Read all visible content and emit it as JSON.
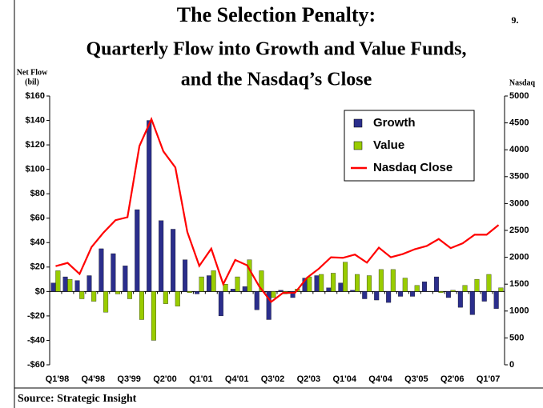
{
  "chart_data": {
    "type": "bar-line",
    "title": "The Selection Penalty:",
    "subtitle": [
      "Quarterly Flow into Growth and Value Funds,",
      "and the Nasdaq’s Close"
    ],
    "page_number": "9.",
    "y_label": [
      "Net Flow",
      "(bil)"
    ],
    "y2_label": "Nasdaq",
    "source": "Source: Strategic Insight",
    "categories": [
      "Q1'98",
      null,
      null,
      "Q4'98",
      null,
      null,
      "Q3'99",
      null,
      null,
      "Q2'00",
      null,
      null,
      "Q1'01",
      null,
      null,
      "Q4'01",
      null,
      null,
      "Q3'02",
      null,
      null,
      "Q2'03",
      null,
      null,
      "Q1'04",
      null,
      null,
      "Q4'04",
      null,
      null,
      "Q3'05",
      null,
      null,
      "Q2'06",
      null,
      null,
      "Q1'07",
      null
    ],
    "series": [
      {
        "name": "Growth",
        "color": "#2b2e8c",
        "type": "bar",
        "values": [
          7,
          12,
          9,
          13,
          35,
          31,
          21,
          67,
          140,
          58,
          51,
          26,
          -2,
          13,
          -20,
          2,
          4,
          -15,
          -23,
          1,
          -5,
          11,
          13,
          3,
          7,
          1,
          -6,
          -7,
          -9,
          -4,
          -4,
          8,
          12,
          -5,
          -13,
          -19,
          -8,
          -14
        ]
      },
      {
        "name": "Value",
        "color": "#99cc00",
        "type": "bar",
        "values": [
          17,
          10,
          -6,
          -8,
          -17,
          -2,
          -6,
          -23,
          -40,
          -10,
          -12,
          -1,
          12,
          17,
          6,
          12,
          26,
          17,
          -5,
          -2,
          2,
          12,
          14,
          15,
          24,
          14,
          13,
          18,
          18,
          11,
          5,
          0,
          -1,
          1,
          5,
          10,
          14,
          3
        ]
      },
      {
        "name": "Nasdaq Close",
        "color": "#ff0000",
        "type": "line",
        "axis": "y2",
        "values": [
          1835,
          1895,
          1690,
          2190,
          2460,
          2690,
          2745,
          4070,
          4570,
          3970,
          3670,
          2470,
          1840,
          2160,
          1500,
          1950,
          1850,
          1460,
          1170,
          1340,
          1340,
          1620,
          1790,
          2000,
          1990,
          2050,
          1900,
          2180,
          2000,
          2060,
          2150,
          2210,
          2340,
          2170,
          2260,
          2420,
          2420,
          2600
        ]
      }
    ],
    "ylim": [
      -60,
      160
    ],
    "yticks": [
      {
        "value": -60,
        "label": "-$60"
      },
      {
        "value": -40,
        "label": "-$40"
      },
      {
        "value": -20,
        "label": "-$20"
      },
      {
        "value": 0,
        "label": "$0"
      },
      {
        "value": 20,
        "label": "$20"
      },
      {
        "value": 40,
        "label": "$40"
      },
      {
        "value": 60,
        "label": "$60"
      },
      {
        "value": 80,
        "label": "$80"
      },
      {
        "value": 100,
        "label": "$100"
      },
      {
        "value": 120,
        "label": "$120"
      },
      {
        "value": 140,
        "label": "$140"
      },
      {
        "value": 160,
        "label": "$160"
      }
    ],
    "y2lim": [
      0,
      5000
    ],
    "y2ticks": [
      0,
      500,
      1000,
      1500,
      2000,
      2500,
      3000,
      3500,
      4000,
      4500,
      5000
    ],
    "legend": "upper right",
    "grid": false
  }
}
